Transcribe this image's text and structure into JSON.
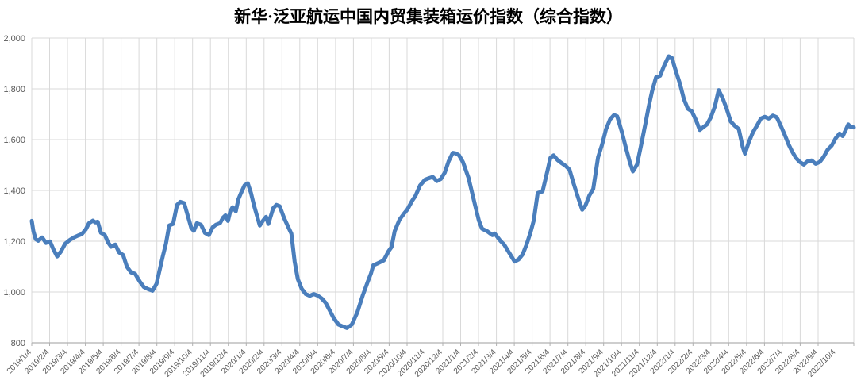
{
  "chart_data": {
    "type": "line",
    "title": "新华·泛亚航运中国内贸集装箱运价指数（综合指数）",
    "legend": "none",
    "grid": "both",
    "ylim": [
      800,
      2000
    ],
    "y_ticks": [
      800,
      1000,
      1200,
      1400,
      1600,
      1800,
      2000
    ],
    "y_tick_labels": [
      "800",
      "1,000",
      "1,200",
      "1,400",
      "1,600",
      "1,800",
      "2,000"
    ],
    "xlim_months": [
      0,
      46
    ],
    "x_unit": "months since 2019/1/4 (weekly samples)",
    "x_tick_labels": [
      "2019/1/4",
      "2019/2/4",
      "2019/3/4",
      "2019/4/4",
      "2019/5/4",
      "2019/6/4",
      "2019/7/4",
      "2019/8/4",
      "2019/9/4",
      "2019/10/4",
      "2019/11/4",
      "2019/12/4",
      "2020/1/4",
      "2020/2/4",
      "2020/3/4",
      "2020/4/4",
      "2020/5/4",
      "2020/6/4",
      "2020/7/4",
      "2020/8/4",
      "2020/9/4",
      "2020/10/4",
      "2020/11/4",
      "2020/12/4",
      "2021/1/4",
      "2021/2/4",
      "2021/3/4",
      "2021/4/4",
      "2021/5/4",
      "2021/6/4",
      "2021/7/4",
      "2021/8/4",
      "2021/9/4",
      "2021/10/4",
      "2021/11/4",
      "2021/12/4",
      "2022/1/4",
      "2022/2/4",
      "2022/3/4",
      "2022/4/4",
      "2022/5/4",
      "2022/6/4",
      "2022/7/4",
      "2022/8/4",
      "2022/9/4",
      "2022/10/4"
    ],
    "series": [
      {
        "name": "综合指数",
        "color": "#4a7ebc",
        "points": [
          [
            0,
            1280
          ],
          [
            0.09,
            1240
          ],
          [
            0.22,
            1208
          ],
          [
            0.36,
            1202
          ],
          [
            0.58,
            1215
          ],
          [
            0.8,
            1193
          ],
          [
            1.02,
            1199
          ],
          [
            1.2,
            1170
          ],
          [
            1.42,
            1140
          ],
          [
            1.64,
            1160
          ],
          [
            1.87,
            1190
          ],
          [
            2.13,
            1205
          ],
          [
            2.36,
            1215
          ],
          [
            2.58,
            1222
          ],
          [
            2.8,
            1228
          ],
          [
            3.02,
            1246
          ],
          [
            3.2,
            1271
          ],
          [
            3.42,
            1281
          ],
          [
            3.56,
            1274
          ],
          [
            3.69,
            1277
          ],
          [
            3.87,
            1233
          ],
          [
            4.09,
            1224
          ],
          [
            4.27,
            1195
          ],
          [
            4.44,
            1178
          ],
          [
            4.67,
            1187
          ],
          [
            4.89,
            1156
          ],
          [
            5.11,
            1146
          ],
          [
            5.33,
            1099
          ],
          [
            5.56,
            1077
          ],
          [
            5.78,
            1072
          ],
          [
            6.04,
            1042
          ],
          [
            6.27,
            1020
          ],
          [
            6.49,
            1012
          ],
          [
            6.76,
            1005
          ],
          [
            6.98,
            1032
          ],
          [
            7.16,
            1088
          ],
          [
            7.33,
            1140
          ],
          [
            7.51,
            1190
          ],
          [
            7.69,
            1262
          ],
          [
            7.91,
            1268
          ],
          [
            8.13,
            1343
          ],
          [
            8.31,
            1355
          ],
          [
            8.53,
            1350
          ],
          [
            8.76,
            1293
          ],
          [
            8.93,
            1252
          ],
          [
            9.07,
            1241
          ],
          [
            9.24,
            1271
          ],
          [
            9.47,
            1265
          ],
          [
            9.69,
            1233
          ],
          [
            9.91,
            1224
          ],
          [
            10.13,
            1255
          ],
          [
            10.31,
            1265
          ],
          [
            10.53,
            1271
          ],
          [
            10.71,
            1293
          ],
          [
            10.84,
            1302
          ],
          [
            10.98,
            1280
          ],
          [
            11.11,
            1318
          ],
          [
            11.24,
            1334
          ],
          [
            11.42,
            1318
          ],
          [
            11.56,
            1365
          ],
          [
            11.69,
            1387
          ],
          [
            11.91,
            1420
          ],
          [
            12.09,
            1428
          ],
          [
            12.27,
            1390
          ],
          [
            12.44,
            1340
          ],
          [
            12.76,
            1262
          ],
          [
            12.93,
            1280
          ],
          [
            13.11,
            1296
          ],
          [
            13.24,
            1268
          ],
          [
            13.51,
            1330
          ],
          [
            13.69,
            1343
          ],
          [
            13.87,
            1338
          ],
          [
            14.13,
            1290
          ],
          [
            14.36,
            1255
          ],
          [
            14.53,
            1230
          ],
          [
            14.71,
            1120
          ],
          [
            14.89,
            1051
          ],
          [
            15.11,
            1012
          ],
          [
            15.33,
            992
          ],
          [
            15.56,
            985
          ],
          [
            15.78,
            992
          ],
          [
            16,
            986
          ],
          [
            16.22,
            975
          ],
          [
            16.44,
            958
          ],
          [
            16.67,
            928
          ],
          [
            16.89,
            898
          ],
          [
            17.16,
            872
          ],
          [
            17.38,
            865
          ],
          [
            17.64,
            858
          ],
          [
            17.91,
            872
          ],
          [
            18.22,
            920
          ],
          [
            18.53,
            988
          ],
          [
            18.8,
            1040
          ],
          [
            18.98,
            1073
          ],
          [
            19.11,
            1105
          ],
          [
            19.33,
            1112
          ],
          [
            19.69,
            1124
          ],
          [
            19.96,
            1160
          ],
          [
            20.13,
            1177
          ],
          [
            20.31,
            1240
          ],
          [
            20.58,
            1285
          ],
          [
            20.84,
            1310
          ],
          [
            21.02,
            1325
          ],
          [
            21.29,
            1360
          ],
          [
            21.47,
            1378
          ],
          [
            21.73,
            1420
          ],
          [
            22,
            1442
          ],
          [
            22.22,
            1448
          ],
          [
            22.44,
            1453
          ],
          [
            22.67,
            1437
          ],
          [
            22.89,
            1445
          ],
          [
            23.11,
            1470
          ],
          [
            23.33,
            1515
          ],
          [
            23.56,
            1548
          ],
          [
            23.73,
            1546
          ],
          [
            23.91,
            1538
          ],
          [
            24.13,
            1512
          ],
          [
            24.44,
            1450
          ],
          [
            24.76,
            1356
          ],
          [
            25.02,
            1281
          ],
          [
            25.2,
            1249
          ],
          [
            25.47,
            1240
          ],
          [
            25.78,
            1224
          ],
          [
            25.91,
            1230
          ],
          [
            26.22,
            1202
          ],
          [
            26.44,
            1186
          ],
          [
            26.71,
            1155
          ],
          [
            27.02,
            1120
          ],
          [
            27.24,
            1128
          ],
          [
            27.47,
            1148
          ],
          [
            27.69,
            1187
          ],
          [
            27.91,
            1235
          ],
          [
            28.09,
            1281
          ],
          [
            28.31,
            1390
          ],
          [
            28.58,
            1396
          ],
          [
            28.8,
            1460
          ],
          [
            29.02,
            1528
          ],
          [
            29.2,
            1538
          ],
          [
            29.42,
            1520
          ],
          [
            29.64,
            1508
          ],
          [
            29.87,
            1497
          ],
          [
            30.09,
            1482
          ],
          [
            30.31,
            1430
          ],
          [
            30.58,
            1370
          ],
          [
            30.8,
            1324
          ],
          [
            30.98,
            1340
          ],
          [
            31.2,
            1380
          ],
          [
            31.42,
            1406
          ],
          [
            31.69,
            1531
          ],
          [
            31.91,
            1580
          ],
          [
            32.13,
            1640
          ],
          [
            32.36,
            1680
          ],
          [
            32.58,
            1697
          ],
          [
            32.76,
            1692
          ],
          [
            33.02,
            1630
          ],
          [
            33.24,
            1570
          ],
          [
            33.47,
            1510
          ],
          [
            33.64,
            1475
          ],
          [
            33.87,
            1502
          ],
          [
            34.13,
            1590
          ],
          [
            34.36,
            1670
          ],
          [
            34.53,
            1733
          ],
          [
            34.71,
            1790
          ],
          [
            34.93,
            1845
          ],
          [
            35.16,
            1852
          ],
          [
            35.38,
            1890
          ],
          [
            35.64,
            1928
          ],
          [
            35.82,
            1922
          ],
          [
            36.04,
            1870
          ],
          [
            36.27,
            1820
          ],
          [
            36.49,
            1760
          ],
          [
            36.71,
            1722
          ],
          [
            36.93,
            1712
          ],
          [
            37.16,
            1678
          ],
          [
            37.38,
            1638
          ],
          [
            37.56,
            1648
          ],
          [
            37.78,
            1660
          ],
          [
            38,
            1688
          ],
          [
            38.22,
            1730
          ],
          [
            38.44,
            1795
          ],
          [
            38.67,
            1762
          ],
          [
            38.89,
            1720
          ],
          [
            39.11,
            1672
          ],
          [
            39.33,
            1655
          ],
          [
            39.56,
            1642
          ],
          [
            39.78,
            1572
          ],
          [
            39.91,
            1545
          ],
          [
            40.13,
            1592
          ],
          [
            40.36,
            1630
          ],
          [
            40.58,
            1655
          ],
          [
            40.8,
            1683
          ],
          [
            41.02,
            1690
          ],
          [
            41.24,
            1683
          ],
          [
            41.47,
            1695
          ],
          [
            41.69,
            1688
          ],
          [
            41.91,
            1655
          ],
          [
            42.13,
            1620
          ],
          [
            42.36,
            1580
          ],
          [
            42.53,
            1556
          ],
          [
            42.76,
            1528
          ],
          [
            42.98,
            1512
          ],
          [
            43.2,
            1502
          ],
          [
            43.42,
            1515
          ],
          [
            43.64,
            1518
          ],
          [
            43.87,
            1505
          ],
          [
            44.09,
            1512
          ],
          [
            44.31,
            1532
          ],
          [
            44.53,
            1560
          ],
          [
            44.76,
            1577
          ],
          [
            44.98,
            1605
          ],
          [
            45.2,
            1624
          ],
          [
            45.38,
            1614
          ],
          [
            45.56,
            1640
          ],
          [
            45.69,
            1660
          ],
          [
            45.82,
            1650
          ],
          [
            46,
            1648
          ]
        ]
      }
    ],
    "colors": {
      "line": "#4a7ebc",
      "gridline": "#d9d9d9",
      "axis_line": "#b0b0b0",
      "tick_label": "#595959",
      "title": "#000000",
      "background": "#ffffff"
    }
  }
}
